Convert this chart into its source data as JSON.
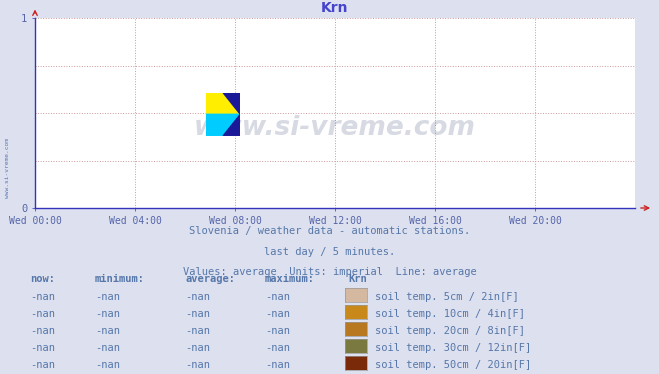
{
  "title": "Krn",
  "title_color": "#4444cc",
  "bg_color": "#dde0ee",
  "plot_bg_color": "#ffffff",
  "axis_color": "#3333bb",
  "tick_color": "#3333bb",
  "tick_label_color": "#5566aa",
  "grid_h_color": "#ccaaaa",
  "grid_v_color": "#ccaaaa",
  "xlim": [
    0,
    1
  ],
  "ylim": [
    0,
    1
  ],
  "xtick_labels": [
    "Wed 00:00",
    "Wed 04:00",
    "Wed 08:00",
    "Wed 12:00",
    "Wed 16:00",
    "Wed 20:00"
  ],
  "xtick_positions": [
    0.0,
    0.1667,
    0.3333,
    0.5,
    0.6667,
    0.8333
  ],
  "ytick_labels": [
    "0",
    "1"
  ],
  "ytick_positions": [
    0.0,
    1.0
  ],
  "watermark_text": "www.si-vreme.com",
  "watermark_color": "#223366",
  "watermark_alpha": 0.18,
  "sidewatermark_text": "www.si-vreme.com",
  "sidewatermark_color": "#4466aa",
  "info_line1": "Slovenia / weather data - automatic stations.",
  "info_line2": "last day / 5 minutes.",
  "info_line3": "Values: average  Units: imperial  Line: average",
  "info_color": "#5577aa",
  "legend_header_now": "now:",
  "legend_header_min": "minimum:",
  "legend_header_avg": "average:",
  "legend_header_max": "maximum:",
  "legend_header_name": "Krn",
  "legend_entries": [
    {
      "color": "#d4b8a0",
      "label": "soil temp. 5cm / 2in[F]"
    },
    {
      "color": "#c8881a",
      "label": "soil temp. 10cm / 4in[F]"
    },
    {
      "color": "#b87820",
      "label": "soil temp. 20cm / 8in[F]"
    },
    {
      "color": "#7a7a40",
      "label": "soil temp. 30cm / 12in[F]"
    },
    {
      "color": "#7a2a08",
      "label": "soil temp. 50cm / 20in[F]"
    }
  ]
}
